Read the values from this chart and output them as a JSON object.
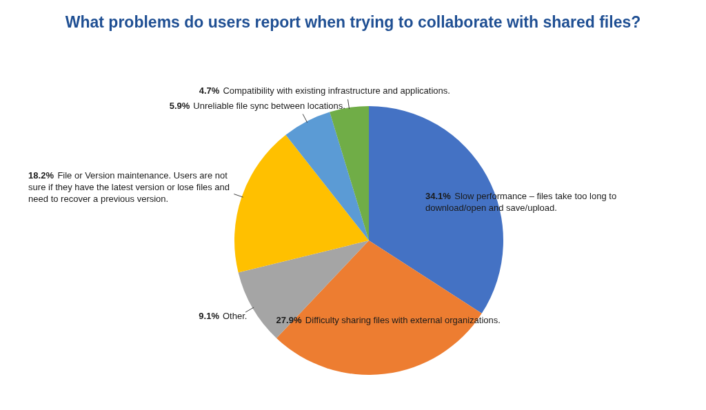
{
  "chart_data": {
    "type": "pie",
    "title": "What problems do users report when trying to collaborate with shared files?",
    "categories": [
      "Slow performance – files take too long to download/open and save/upload.",
      "Difficulty sharing files with external organizations.",
      "Other.",
      "File or Version maintenance. Users are not sure if they have the latest version or lose files and need to recover a previous version.",
      "Unreliable file sync between locations.",
      "Compatibility with existing infrastructure and applications."
    ],
    "values": [
      34.1,
      27.9,
      9.1,
      18.2,
      5.9,
      4.7
    ],
    "colors": [
      "#4472c4",
      "#ed7d31",
      "#a5a5a5",
      "#ffc000",
      "#5b9bd5",
      "#70ad47"
    ],
    "value_labels": [
      "34.1%",
      "27.9%",
      "9.1%",
      "18.2%",
      "5.9%",
      "4.7%"
    ]
  }
}
